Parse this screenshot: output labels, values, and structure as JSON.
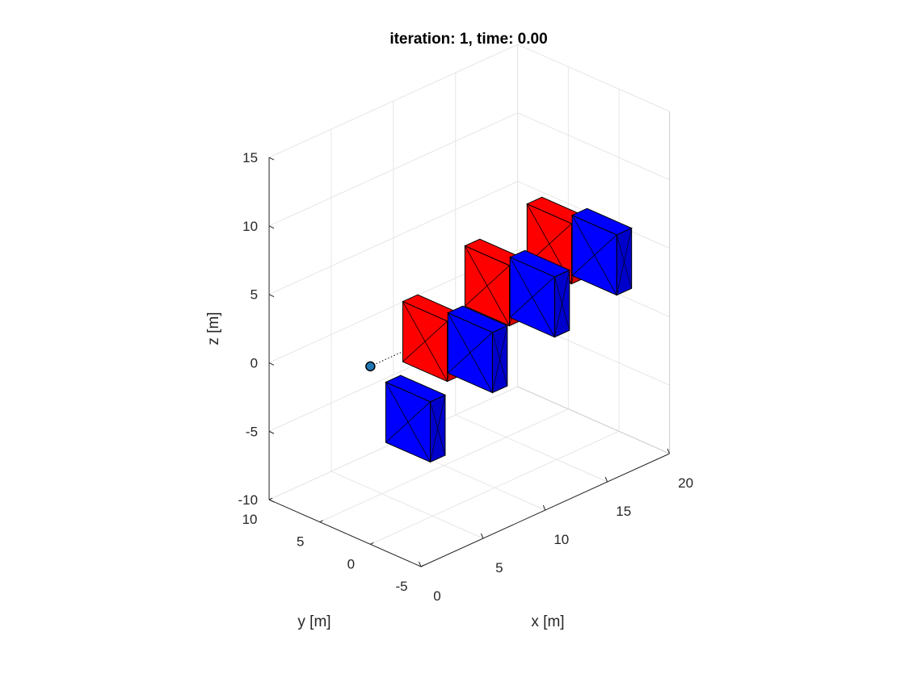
{
  "chart_data": {
    "type": "3d-scene",
    "title": "iteration: 1, time: 0.00",
    "xlabel": "x [m]",
    "ylabel": "y [m]",
    "zlabel": "z [m]",
    "xlim": [
      0,
      20
    ],
    "ylim": [
      -5,
      10
    ],
    "zlim": [
      -10,
      15
    ],
    "xticks": [
      "0",
      "5",
      "10",
      "15",
      "20"
    ],
    "yticks": [
      "-5",
      "0",
      "5",
      "10"
    ],
    "zticks": [
      "-10",
      "-5",
      "0",
      "5",
      "10",
      "15"
    ],
    "grid": true,
    "colors": {
      "red_gate": "#ff0000",
      "blue_gate": "#0000ff",
      "vehicle": "#1f77b4"
    },
    "vehicle": {
      "x": 0,
      "y": 0,
      "z": 3
    },
    "path": [
      [
        0,
        0,
        3
      ],
      [
        20,
        0,
        3
      ]
    ],
    "gates": [
      {
        "color": "blue",
        "x": 2,
        "y": -2,
        "z": -1
      },
      {
        "color": "red",
        "x": 5,
        "y": 0,
        "z": 3
      },
      {
        "color": "blue",
        "x": 7,
        "y": -2,
        "z": 2
      },
      {
        "color": "red",
        "x": 10,
        "y": 0,
        "z": 5
      },
      {
        "color": "blue",
        "x": 12,
        "y": -2,
        "z": 4
      },
      {
        "color": "red",
        "x": 15,
        "y": 0,
        "z": 6
      },
      {
        "color": "blue",
        "x": 17,
        "y": -2,
        "z": 5
      }
    ]
  }
}
